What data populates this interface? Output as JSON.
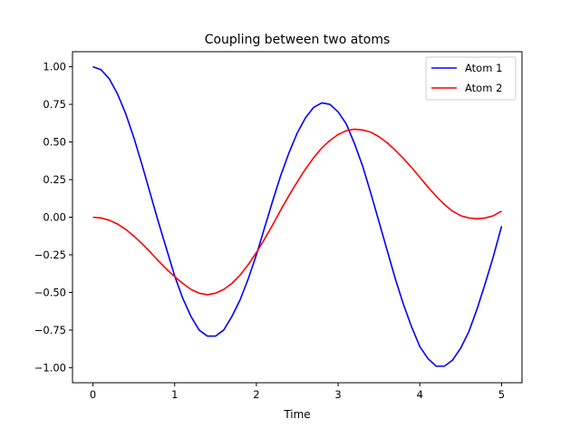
{
  "chart_data": {
    "type": "line",
    "title": "Coupling between two atoms",
    "xlabel": "Time",
    "ylabel": "",
    "xlim": [
      -0.25,
      5.25
    ],
    "ylim": [
      -1.1,
      1.1
    ],
    "xticks": [
      0,
      1,
      2,
      3,
      4,
      5
    ],
    "xtick_labels": [
      "0",
      "1",
      "2",
      "3",
      "4",
      "5"
    ],
    "yticks": [
      1.0,
      0.75,
      0.5,
      0.25,
      0.0,
      -0.25,
      -0.5,
      -0.75,
      -1.0
    ],
    "ytick_labels": [
      "1.00",
      "0.75",
      "0.50",
      "0.25",
      "0.00",
      "−0.25",
      "−0.50",
      "−0.75",
      "−1.00"
    ],
    "grid": false,
    "legend": "top-right",
    "x": [
      0.0,
      0.1,
      0.2,
      0.3,
      0.4,
      0.5,
      0.6,
      0.7,
      0.8,
      0.9,
      1.0,
      1.1,
      1.2,
      1.3,
      1.4,
      1.5,
      1.6,
      1.7,
      1.8,
      1.9,
      2.0,
      2.1,
      2.2,
      2.3,
      2.4,
      2.5,
      2.6,
      2.7,
      2.8,
      2.9,
      3.0,
      3.1,
      3.2,
      3.3,
      3.4,
      3.5,
      3.6,
      3.7,
      3.8,
      3.9,
      4.0,
      4.1,
      4.2,
      4.3,
      4.4,
      4.5,
      4.6,
      4.7,
      4.8,
      4.9,
      5.0
    ],
    "series": [
      {
        "name": "Atom 1",
        "color": "#0000ff",
        "values": [
          1.0,
          0.98,
          0.92,
          0.82,
          0.69,
          0.53,
          0.35,
          0.16,
          -0.03,
          -0.21,
          -0.39,
          -0.54,
          -0.66,
          -0.75,
          -0.79,
          -0.79,
          -0.75,
          -0.66,
          -0.55,
          -0.41,
          -0.25,
          -0.07,
          0.11,
          0.28,
          0.43,
          0.56,
          0.66,
          0.73,
          0.76,
          0.75,
          0.7,
          0.62,
          0.49,
          0.34,
          0.16,
          -0.03,
          -0.22,
          -0.41,
          -0.58,
          -0.73,
          -0.86,
          -0.94,
          -0.99,
          -0.99,
          -0.95,
          -0.87,
          -0.76,
          -0.61,
          -0.44,
          -0.26,
          -0.06
        ]
      },
      {
        "name": "Atom 2",
        "color": "#ff0000",
        "values": [
          0.0,
          -0.005,
          -0.02,
          -0.045,
          -0.08,
          -0.125,
          -0.175,
          -0.23,
          -0.29,
          -0.345,
          -0.395,
          -0.44,
          -0.48,
          -0.505,
          -0.515,
          -0.505,
          -0.48,
          -0.44,
          -0.385,
          -0.315,
          -0.235,
          -0.145,
          -0.05,
          0.05,
          0.145,
          0.235,
          0.32,
          0.395,
          0.46,
          0.51,
          0.55,
          0.575,
          0.585,
          0.58,
          0.565,
          0.535,
          0.495,
          0.445,
          0.39,
          0.33,
          0.265,
          0.2,
          0.14,
          0.085,
          0.04,
          0.01,
          -0.005,
          -0.01,
          -0.005,
          0.01,
          0.04
        ]
      }
    ]
  }
}
